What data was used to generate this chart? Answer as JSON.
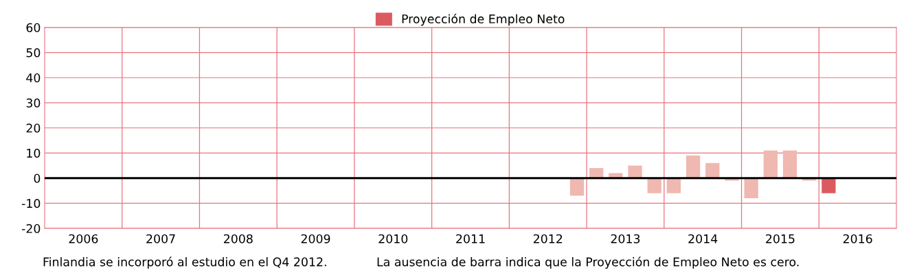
{
  "chart_data": {
    "type": "bar",
    "x": [
      2012.875,
      2013.125,
      2013.375,
      2013.625,
      2013.875,
      2014.125,
      2014.375,
      2014.625,
      2014.875,
      2015.125,
      2015.375,
      2015.625,
      2015.875,
      2016.125
    ],
    "series": [
      {
        "name": "Proyección de Empleo Neto",
        "color": "#db5a5f",
        "values": [
          -7,
          4,
          2,
          5,
          -6,
          -6,
          9,
          6,
          -1,
          -8,
          11,
          11,
          -1,
          -6
        ],
        "colors": [
          "#efb8b0",
          "#efb8b0",
          "#efb8b0",
          "#efb8b0",
          "#efb8b0",
          "#efb8b0",
          "#efb8b0",
          "#efb8b0",
          "#efb8b0",
          "#efb8b0",
          "#efb8b0",
          "#efb8b0",
          "#efb8b0",
          "#db5a5f"
        ]
      }
    ],
    "xlim": [
      2006,
      2017
    ],
    "xticks": [
      {
        "value": 2006.5,
        "label": "2006"
      },
      {
        "value": 2007,
        "label": null
      },
      {
        "value": 2007.5,
        "label": "2007"
      },
      {
        "value": 2008,
        "label": null
      },
      {
        "value": 2008.5,
        "label": "2008"
      },
      {
        "value": 2009,
        "label": null
      },
      {
        "value": 2009.5,
        "label": "2009"
      },
      {
        "value": 2010,
        "label": null
      },
      {
        "value": 2010.5,
        "label": "2010"
      },
      {
        "value": 2011,
        "label": null
      },
      {
        "value": 2011.5,
        "label": "2011"
      },
      {
        "value": 2012,
        "label": null
      },
      {
        "value": 2012.5,
        "label": "2012"
      },
      {
        "value": 2013,
        "label": null
      },
      {
        "value": 2013.5,
        "label": "2013"
      },
      {
        "value": 2014,
        "label": null
      },
      {
        "value": 2014.5,
        "label": "2014"
      },
      {
        "value": 2015,
        "label": null
      },
      {
        "value": 2015.5,
        "label": "2015"
      },
      {
        "value": 2016,
        "label": null
      },
      {
        "value": 2016.5,
        "label": "2016"
      }
    ],
    "ylim": [
      -20,
      60
    ],
    "yticks": [
      -20,
      -10,
      0,
      10,
      20,
      30,
      40,
      50,
      60
    ],
    "ref_lines": [
      {
        "axis": "y",
        "value": 0,
        "color": "#000000"
      }
    ],
    "grid": true,
    "legend": "top",
    "annotations": [
      "Finlandia se incorporó al estudio en el Q4 2012.",
      "La ausencia de barra indica que la Proyección de Empleo Neto es cero."
    ]
  }
}
